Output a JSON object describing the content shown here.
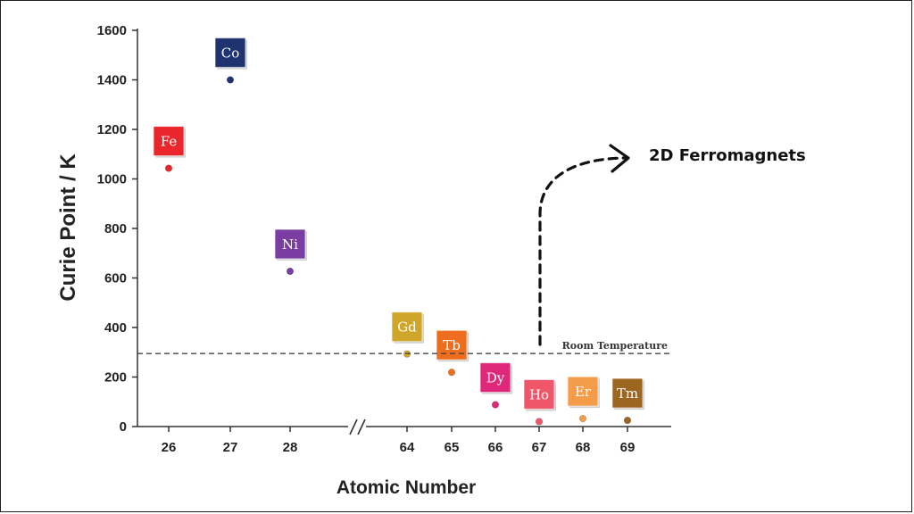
{
  "chart_data": {
    "type": "scatter",
    "title": "",
    "xlabel": "Atomic Number",
    "ylabel": "Curie Point / K",
    "ylim": [
      0,
      1600
    ],
    "yticks": [
      0,
      200,
      400,
      600,
      800,
      1000,
      1200,
      1400,
      1600
    ],
    "axis_break": "//",
    "categories": [
      "26",
      "27",
      "28",
      "64",
      "65",
      "66",
      "67",
      "68",
      "69"
    ],
    "points": [
      {
        "element": "Fe",
        "atomic_number": "26",
        "curie_point": 1043,
        "color": "#e8262b"
      },
      {
        "element": "Co",
        "atomic_number": "27",
        "curie_point": 1400,
        "color": "#1f3370"
      },
      {
        "element": "Ni",
        "atomic_number": "28",
        "curie_point": 627,
        "color": "#7a3ea3"
      },
      {
        "element": "Gd",
        "atomic_number": "64",
        "curie_point": 293,
        "color": "#d0a62a"
      },
      {
        "element": "Tb",
        "atomic_number": "65",
        "curie_point": 219,
        "color": "#ee6d1e"
      },
      {
        "element": "Dy",
        "atomic_number": "66",
        "curie_point": 88,
        "color": "#e0287a"
      },
      {
        "element": "Ho",
        "atomic_number": "67",
        "curie_point": 20,
        "color": "#f0566a"
      },
      {
        "element": "Er",
        "atomic_number": "68",
        "curie_point": 32,
        "color": "#f49c4a"
      },
      {
        "element": "Tm",
        "atomic_number": "69",
        "curie_point": 25,
        "color": "#9c6520"
      }
    ],
    "reference_line": {
      "label": "Room Temperature",
      "value": 295
    },
    "annotation": {
      "label": "2D Ferromagnets"
    }
  }
}
